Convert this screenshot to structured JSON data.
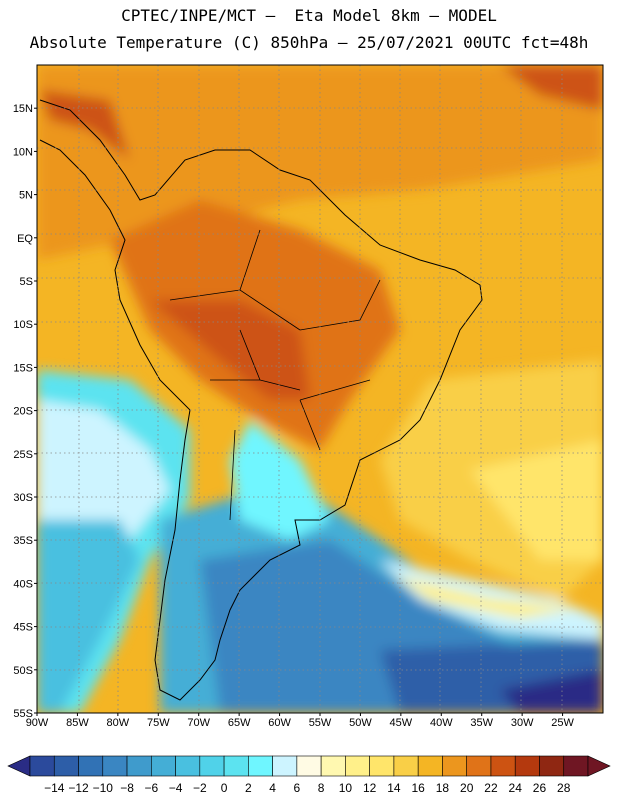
{
  "title_line1": "CPTEC/INPE/MCT –  Eta Model 8km – MODEL",
  "title_line2": "Absolute Temperature (C) 850hPa – 25/07/2021 00UTC fct=48h",
  "map": {
    "lat_labels": [
      "15N",
      "10N",
      "5N",
      "EQ",
      "5S",
      "10S",
      "15S",
      "20S",
      "25S",
      "30S",
      "35S",
      "40S",
      "45S",
      "50S",
      "55S"
    ],
    "lat_values": [
      15,
      10,
      5,
      0,
      -5,
      -10,
      -15,
      -20,
      -25,
      -30,
      -35,
      -40,
      -45,
      -50,
      -55
    ],
    "lon_labels": [
      "90W",
      "85W",
      "80W",
      "75W",
      "70W",
      "65W",
      "60W",
      "55W",
      "50W",
      "45W",
      "40W",
      "35W",
      "30W",
      "25W"
    ],
    "lon_values": [
      -90,
      -85,
      -80,
      -75,
      -70,
      -65,
      -60,
      -55,
      -50,
      -45,
      -40,
      -35,
      -30,
      -25
    ],
    "lon_range": [
      -90,
      -20
    ],
    "lat_range": [
      -55,
      20
    ]
  },
  "colorbar": {
    "labels": [
      "-14",
      "-12",
      "-10",
      "-8",
      "-6",
      "-4",
      "-2",
      "0",
      "2",
      "4",
      "6",
      "8",
      "10",
      "12",
      "14",
      "16",
      "18",
      "20",
      "22",
      "24",
      "26",
      "28"
    ],
    "colors": [
      "#2b4a9c",
      "#2d5ea8",
      "#3172b5",
      "#3a86c2",
      "#3f9bcc",
      "#44aed6",
      "#49c0e0",
      "#50d2e9",
      "#5ce3f0",
      "#6ff6ff",
      "#cdf4ff",
      "#fffbe4",
      "#fff8b0",
      "#fff08a",
      "#ffe56a",
      "#f9cf47",
      "#f4b524",
      "#ec961e",
      "#e07318",
      "#cd5312",
      "#b4390e",
      "#8f2712",
      "#6f1623"
    ],
    "low_arrow": "#2a2c85",
    "high_arrow": "#6f1623"
  }
}
